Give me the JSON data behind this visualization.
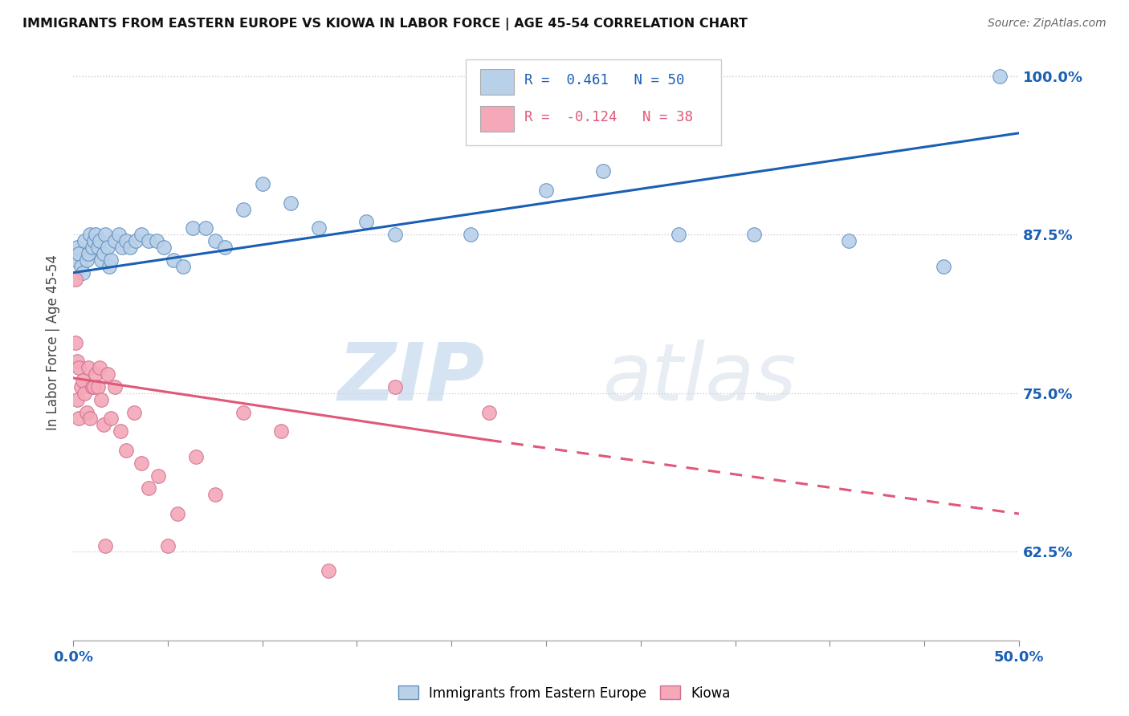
{
  "title": "IMMIGRANTS FROM EASTERN EUROPE VS KIOWA IN LABOR FORCE | AGE 45-54 CORRELATION CHART",
  "source": "Source: ZipAtlas.com",
  "ylabel": "In Labor Force | Age 45-54",
  "ytick_labels": [
    "62.5%",
    "75.0%",
    "87.5%",
    "100.0%"
  ],
  "ytick_values": [
    0.625,
    0.75,
    0.875,
    1.0
  ],
  "legend_entries": [
    {
      "label": "Immigrants from Eastern Europe",
      "color": "#b8d0e8",
      "R": 0.461,
      "N": 50
    },
    {
      "label": "Kiowa",
      "color": "#f4a8b8",
      "R": -0.124,
      "N": 38
    }
  ],
  "blue_scatter_x": [
    0.001,
    0.002,
    0.003,
    0.004,
    0.005,
    0.006,
    0.007,
    0.008,
    0.009,
    0.01,
    0.011,
    0.012,
    0.013,
    0.014,
    0.015,
    0.016,
    0.017,
    0.018,
    0.019,
    0.02,
    0.022,
    0.024,
    0.026,
    0.028,
    0.03,
    0.033,
    0.036,
    0.04,
    0.044,
    0.048,
    0.053,
    0.058,
    0.063,
    0.07,
    0.075,
    0.08,
    0.09,
    0.1,
    0.115,
    0.13,
    0.155,
    0.17,
    0.21,
    0.25,
    0.28,
    0.32,
    0.36,
    0.41,
    0.46,
    0.49
  ],
  "blue_scatter_y": [
    0.855,
    0.865,
    0.86,
    0.85,
    0.845,
    0.87,
    0.855,
    0.86,
    0.875,
    0.865,
    0.87,
    0.875,
    0.865,
    0.87,
    0.855,
    0.86,
    0.875,
    0.865,
    0.85,
    0.855,
    0.87,
    0.875,
    0.865,
    0.87,
    0.865,
    0.87,
    0.875,
    0.87,
    0.87,
    0.865,
    0.855,
    0.85,
    0.88,
    0.88,
    0.87,
    0.865,
    0.895,
    0.915,
    0.9,
    0.88,
    0.885,
    0.875,
    0.875,
    0.91,
    0.925,
    0.875,
    0.875,
    0.87,
    0.85,
    1.0
  ],
  "pink_scatter_x": [
    0.001,
    0.001,
    0.002,
    0.002,
    0.003,
    0.003,
    0.004,
    0.005,
    0.006,
    0.007,
    0.008,
    0.009,
    0.01,
    0.011,
    0.012,
    0.013,
    0.014,
    0.015,
    0.016,
    0.017,
    0.018,
    0.02,
    0.022,
    0.025,
    0.028,
    0.032,
    0.036,
    0.04,
    0.045,
    0.05,
    0.055,
    0.065,
    0.075,
    0.09,
    0.11,
    0.135,
    0.17,
    0.22
  ],
  "pink_scatter_y": [
    0.84,
    0.79,
    0.775,
    0.745,
    0.77,
    0.73,
    0.755,
    0.76,
    0.75,
    0.735,
    0.77,
    0.73,
    0.755,
    0.755,
    0.765,
    0.755,
    0.77,
    0.745,
    0.725,
    0.63,
    0.765,
    0.73,
    0.755,
    0.72,
    0.705,
    0.735,
    0.695,
    0.675,
    0.685,
    0.63,
    0.655,
    0.7,
    0.67,
    0.735,
    0.72,
    0.61,
    0.755,
    0.735
  ],
  "blue_line_x0": 0.0,
  "blue_line_y0": 0.845,
  "blue_line_x1": 0.5,
  "blue_line_y1": 0.955,
  "pink_line_x0": 0.0,
  "pink_line_y0": 0.762,
  "pink_line_x1_solid": 0.22,
  "pink_line_y1_solid": 0.713,
  "pink_line_x1_dash": 0.5,
  "pink_line_y1_dash": 0.655,
  "blue_line_color": "#1a5fb4",
  "pink_line_color": "#e05878",
  "background_color": "#ffffff",
  "grid_color": "#cccccc",
  "xlim": [
    0.0,
    0.5
  ],
  "ylim": [
    0.555,
    1.025
  ]
}
